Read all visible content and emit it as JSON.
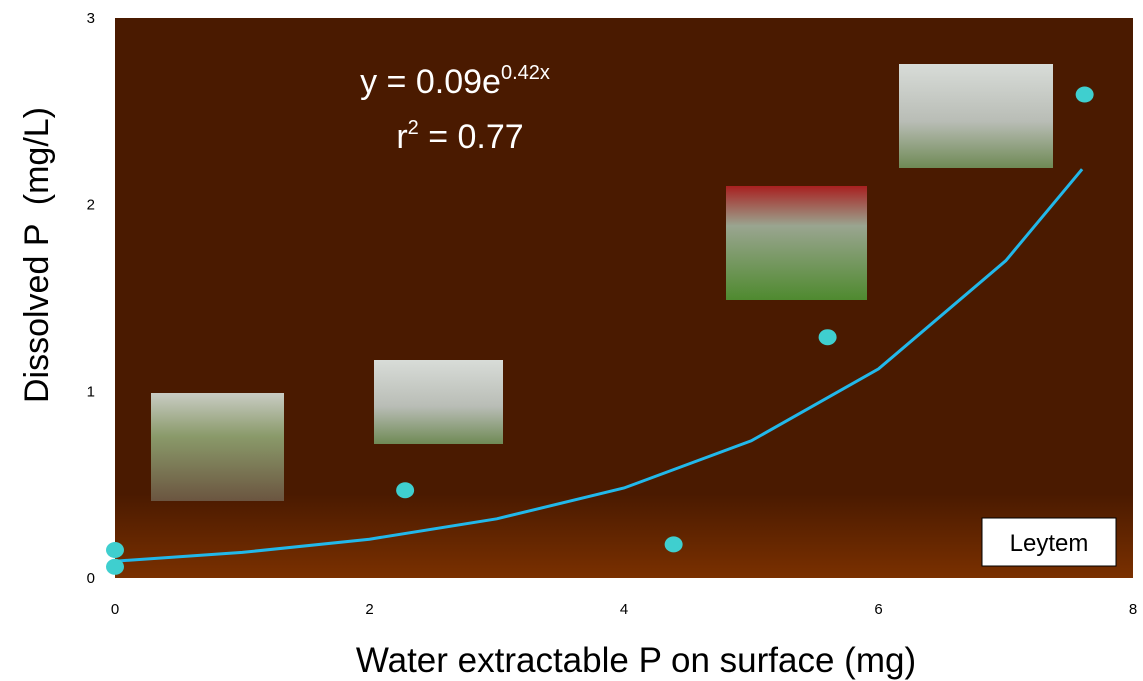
{
  "chart_data": {
    "type": "scatter",
    "x_label": "Water extractable P on surface (mg)",
    "y_label": "Dissolved P  (mg/L)",
    "equation": {
      "base": "y = 0.09e",
      "exponent": "0.42x"
    },
    "r_squared": {
      "base": "r",
      "exponent": "2",
      "rest": " = 0.77"
    },
    "annotation": "Leytem",
    "x": [
      0,
      0,
      2.28,
      4.39,
      5.6,
      7.62
    ],
    "values": [
      0.15,
      0.06,
      0.47,
      0.18,
      1.29,
      2.59
    ],
    "color": "#3fcfcf",
    "curve": {
      "x": [
        0,
        1,
        2,
        3,
        4,
        5,
        6,
        7,
        7.6
      ],
      "values": [
        0.09,
        0.137,
        0.208,
        0.317,
        0.482,
        0.735,
        1.12,
        1.7,
        2.19
      ],
      "color": "#22b8ea"
    },
    "xlim": [
      0,
      8
    ],
    "ylim": [
      0,
      3
    ],
    "xticks": [
      0,
      2,
      4,
      6,
      8
    ],
    "yticks": [
      0,
      1,
      2,
      3
    ]
  }
}
